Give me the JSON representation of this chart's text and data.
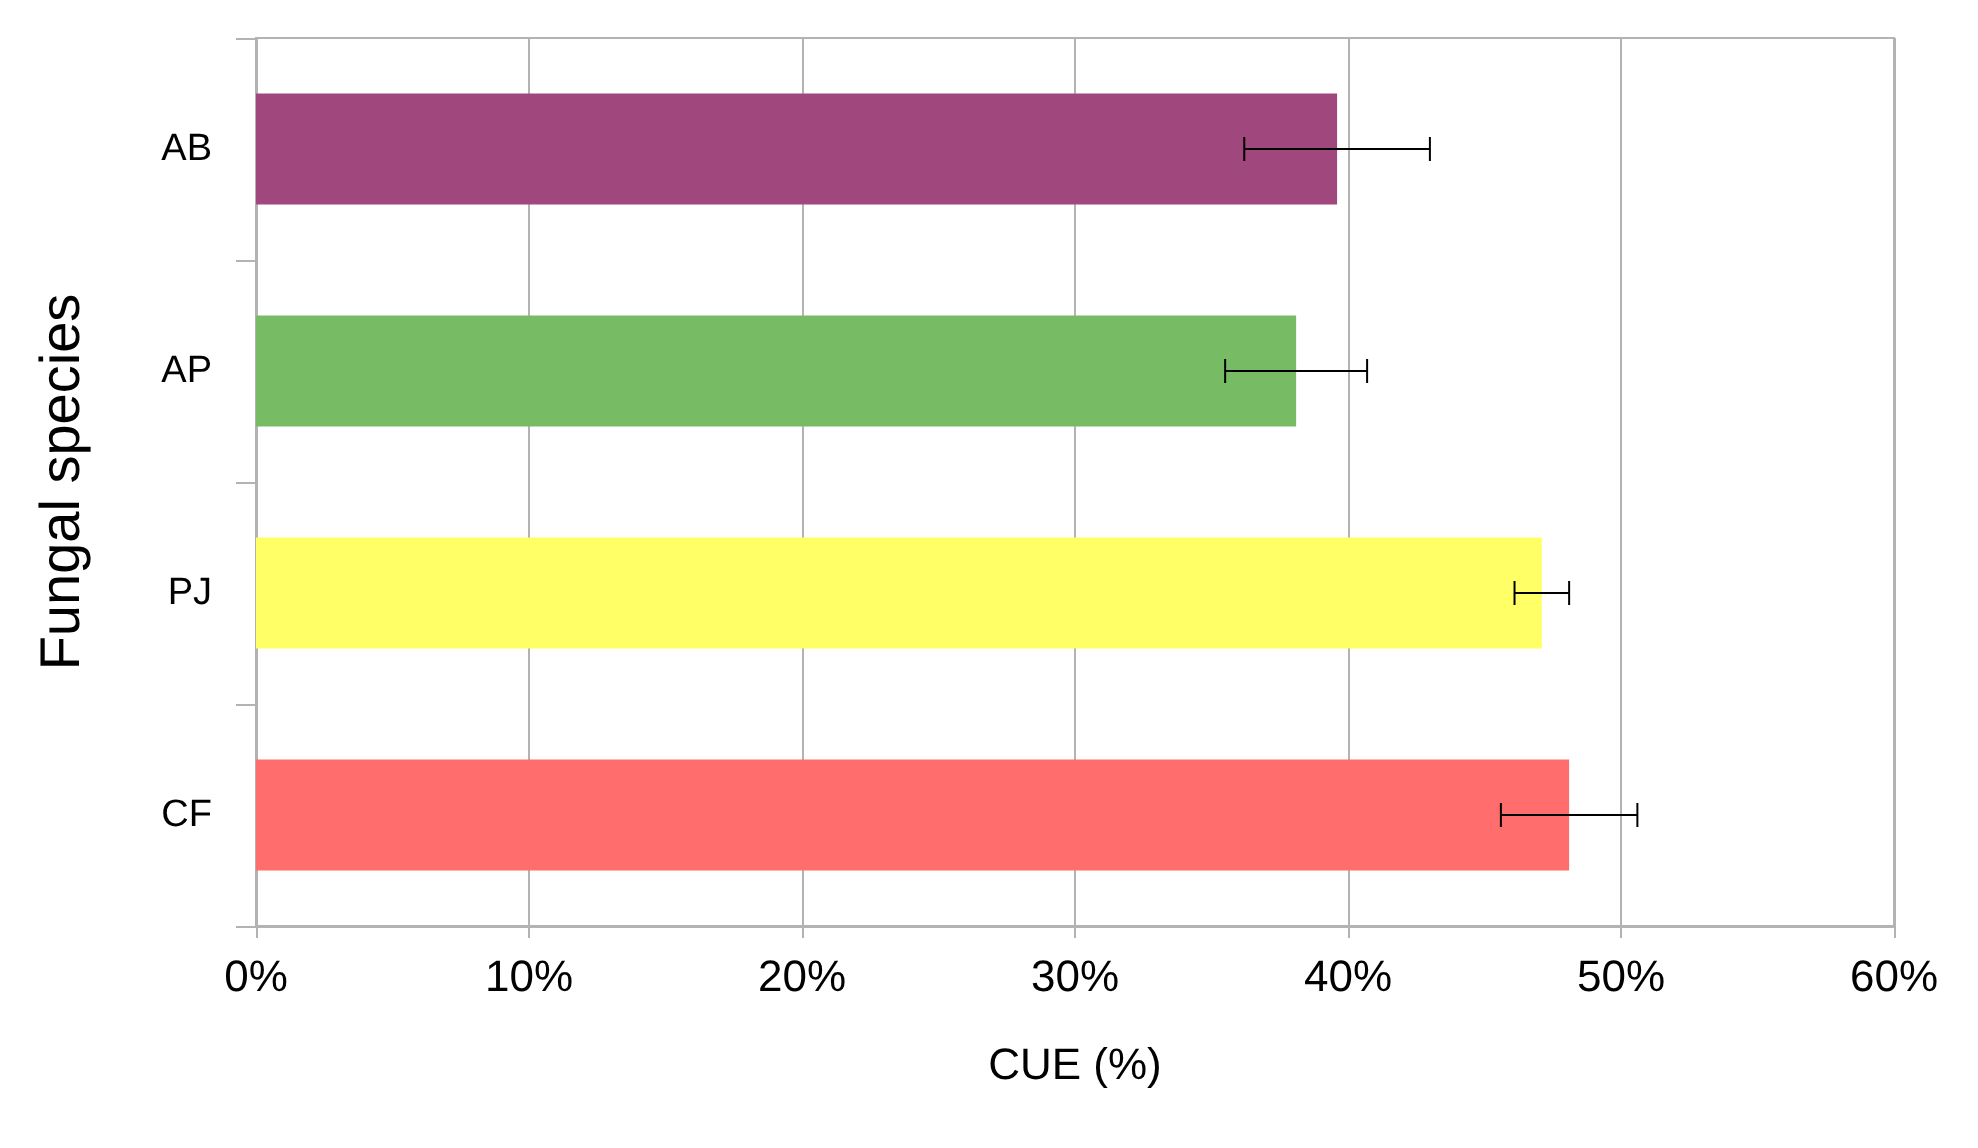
{
  "chart_data": {
    "type": "bar",
    "orientation": "horizontal",
    "xlabel": "CUE (%)",
    "ylabel": "Fungal species",
    "categories": [
      "AB",
      "AP",
      "PJ",
      "CF"
    ],
    "values": [
      39.6,
      38.1,
      47.1,
      48.1
    ],
    "colors": [
      "#a0487e",
      "#77bc65",
      "#ffff66",
      "#ff6d6d"
    ],
    "errors": [
      3.4,
      2.6,
      1.0,
      2.5
    ],
    "xlim": [
      0,
      60
    ],
    "xticks": [
      {
        "value": 0,
        "label": "0%"
      },
      {
        "value": 10,
        "label": "10%"
      },
      {
        "value": 20,
        "label": "20%"
      },
      {
        "value": 30,
        "label": "30%"
      },
      {
        "value": 40,
        "label": "40%"
      },
      {
        "value": 50,
        "label": "50%"
      },
      {
        "value": 60,
        "label": "60%"
      }
    ],
    "grid": "x"
  }
}
